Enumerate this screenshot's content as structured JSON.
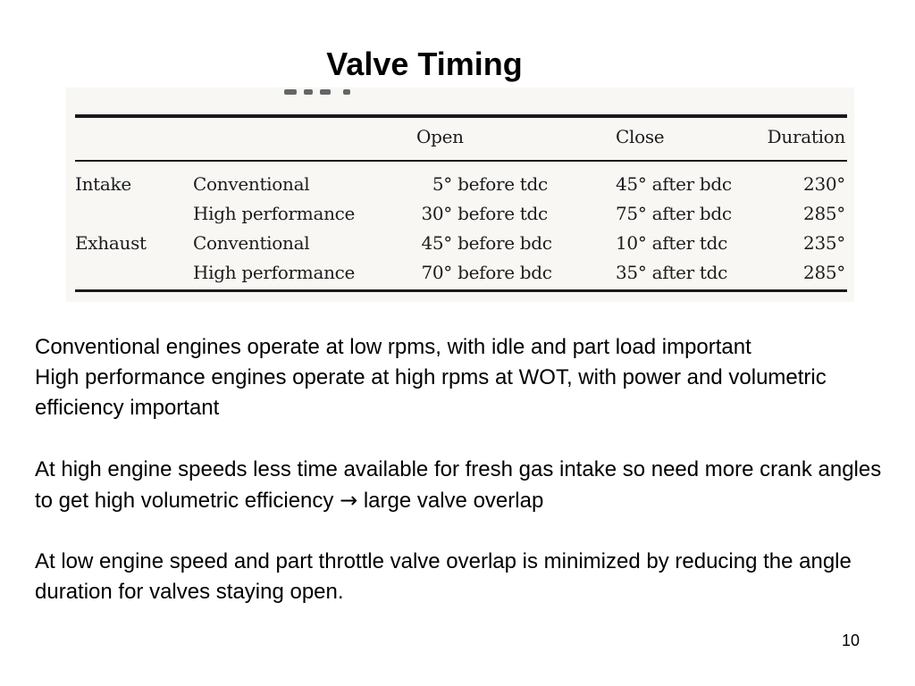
{
  "slide": {
    "title": "Valve Timing",
    "page_number": "10"
  },
  "table": {
    "headers": {
      "open": "Open",
      "close": "Close",
      "duration": "Duration"
    },
    "rows": [
      {
        "valve": "Intake",
        "type": "Conventional",
        "open_value": "5°",
        "open_ref": "before tdc",
        "close": "45° after bdc",
        "duration": "230°"
      },
      {
        "valve": "",
        "type": "High performance",
        "open_value": "30°",
        "open_ref": "before tdc",
        "close": "75° after bdc",
        "duration": "285°"
      },
      {
        "valve": "Exhaust",
        "type": "Conventional",
        "open_value": "45°",
        "open_ref": "before bdc",
        "close": "10° after tdc",
        "duration": "235°"
      },
      {
        "valve": "",
        "type": "High performance",
        "open_value": "70°",
        "open_ref": "before bdc",
        "close": "35° after tdc",
        "duration": "285°"
      }
    ]
  },
  "paragraphs": {
    "p1_line1": "Conventional engines operate at low rpms, with idle and part load important",
    "p1_line2": "High performance engines operate at high rpms at WOT, with power and volumetric efficiency important",
    "p2_before_arrow": "At high engine speeds less time available for fresh gas intake so need more crank angles to get high volumetric efficiency ",
    "p2_arrow": "→",
    "p2_after_arrow": " large valve overlap",
    "p3": "At low engine speed and part throttle valve overlap is minimized by reducing the angle duration for valves staying open."
  }
}
